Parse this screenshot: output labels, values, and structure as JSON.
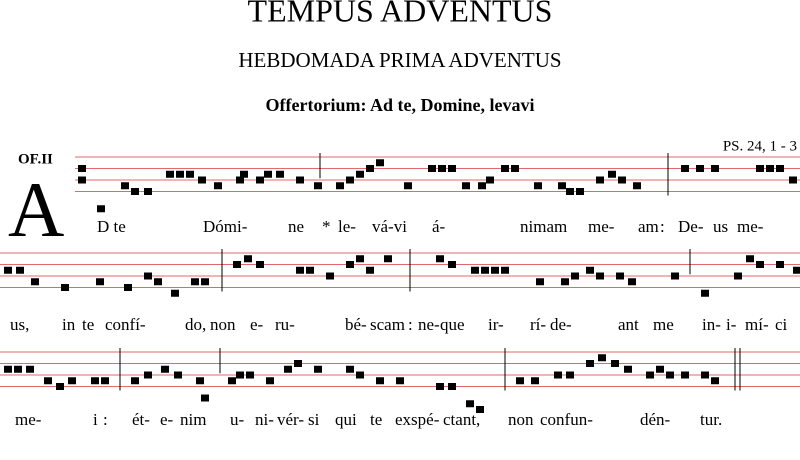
{
  "header": {
    "title": "TEMPUS ADVENTUS",
    "subtitle": "HEBDOMADA PRIMA ADVENTUS",
    "heading": "Offertorium: Ad te, Domine, levavi"
  },
  "mode": "OF.II",
  "reference": "PS. 24, 1 - 3",
  "initial": "A",
  "lyrics": [
    [
      "D te",
      "Dómi-",
      "ne",
      "*",
      "le-",
      "vá-vi",
      "á-",
      "nimam",
      "me-",
      "am",
      ":",
      "De-",
      "us",
      "me-"
    ],
    [
      "us,",
      "in",
      "te",
      "confí-",
      "do,",
      "non",
      "e-",
      "ru-",
      "bé-",
      "scam",
      ":",
      "ne-",
      "que",
      "ir-",
      "rí-",
      "de-",
      "ant",
      "me",
      "in-",
      "i-",
      "mí-",
      "ci"
    ],
    [
      "me-",
      "i",
      ":",
      "ét-",
      "e-",
      "nim",
      "u-",
      "ni-",
      "vér-",
      "si",
      "qui",
      "te",
      "exspé-",
      "ctant,",
      "non",
      "confun-",
      "dén-",
      "tur."
    ]
  ]
}
